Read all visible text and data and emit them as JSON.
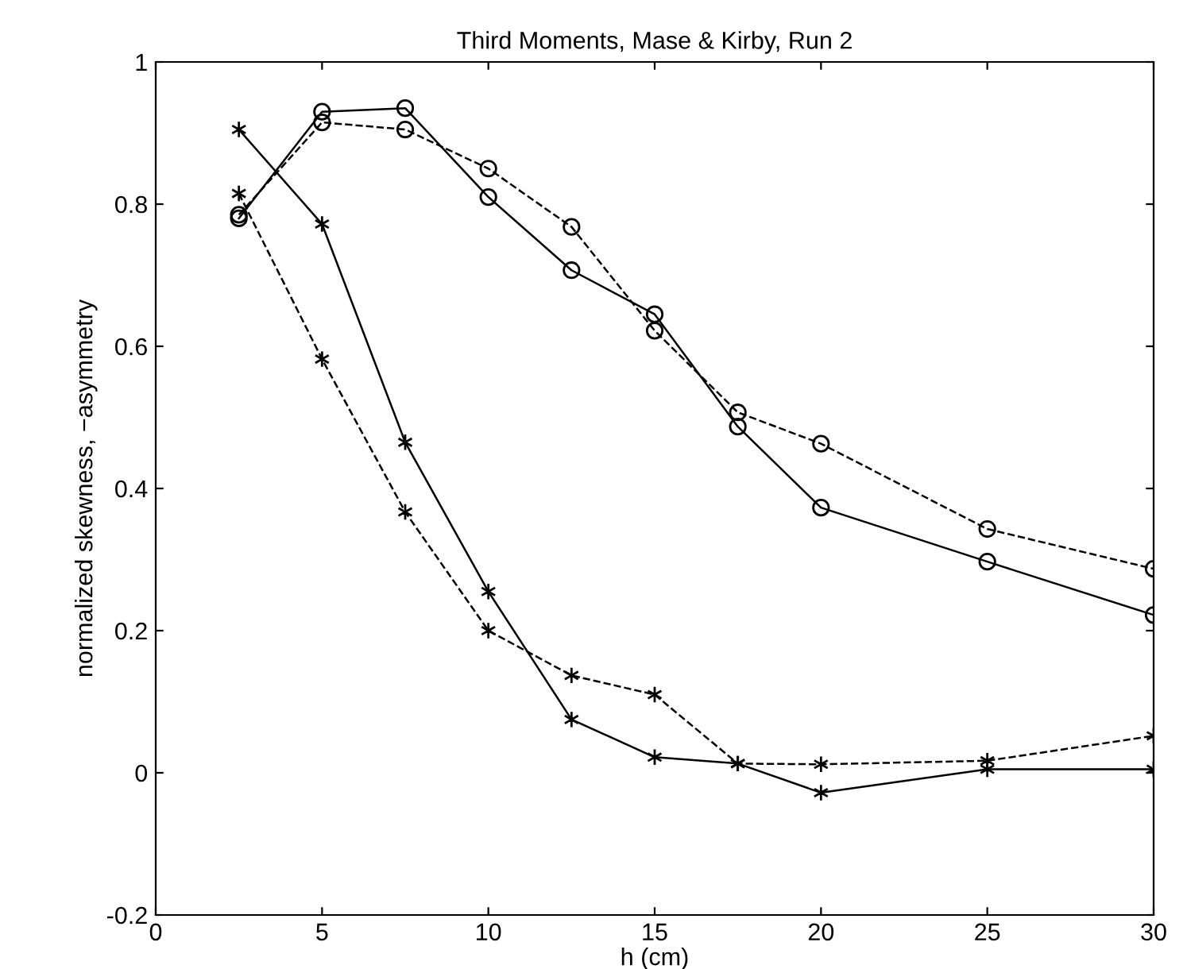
{
  "chart_data": {
    "type": "line",
    "title": "Third Moments, Mase & Kirby, Run 2",
    "xlabel": "h (cm)",
    "ylabel": "normalized skewness, −asymmetry",
    "x": [
      2.5,
      5,
      7.5,
      10,
      12.5,
      15,
      17.5,
      20,
      25,
      30
    ],
    "series": [
      {
        "color": "#000000",
        "marker": "circle",
        "line_style": "solid",
        "values": [
          0.78,
          0.93,
          0.935,
          0.81,
          0.707,
          0.645,
          0.487,
          0.373,
          0.297,
          0.222
        ]
      },
      {
        "color": "#000000",
        "marker": "circle",
        "line_style": "dashed",
        "values": [
          0.785,
          0.915,
          0.905,
          0.85,
          0.768,
          0.622,
          0.507,
          0.463,
          0.343,
          0.287
        ]
      },
      {
        "color": "#000000",
        "marker": "cross",
        "line_style": "solid",
        "values": [
          0.905,
          0.772,
          0.465,
          0.255,
          0.075,
          0.022,
          0.013,
          -0.028,
          0.005,
          0.005
        ]
      },
      {
        "color": "#000000",
        "marker": "cross",
        "line_style": "dashed",
        "values": [
          0.815,
          0.582,
          0.367,
          0.2,
          0.137,
          0.11,
          0.013,
          0.012,
          0.017,
          0.052
        ]
      }
    ],
    "xlim": [
      0,
      30
    ],
    "xticks": [
      0,
      5,
      10,
      15,
      20,
      25,
      30
    ],
    "ylim": [
      -0.2,
      1
    ],
    "yticks": [
      -0.2,
      0,
      0.2,
      0.4,
      0.6,
      0.8,
      1
    ],
    "grid": false,
    "legend": false
  }
}
